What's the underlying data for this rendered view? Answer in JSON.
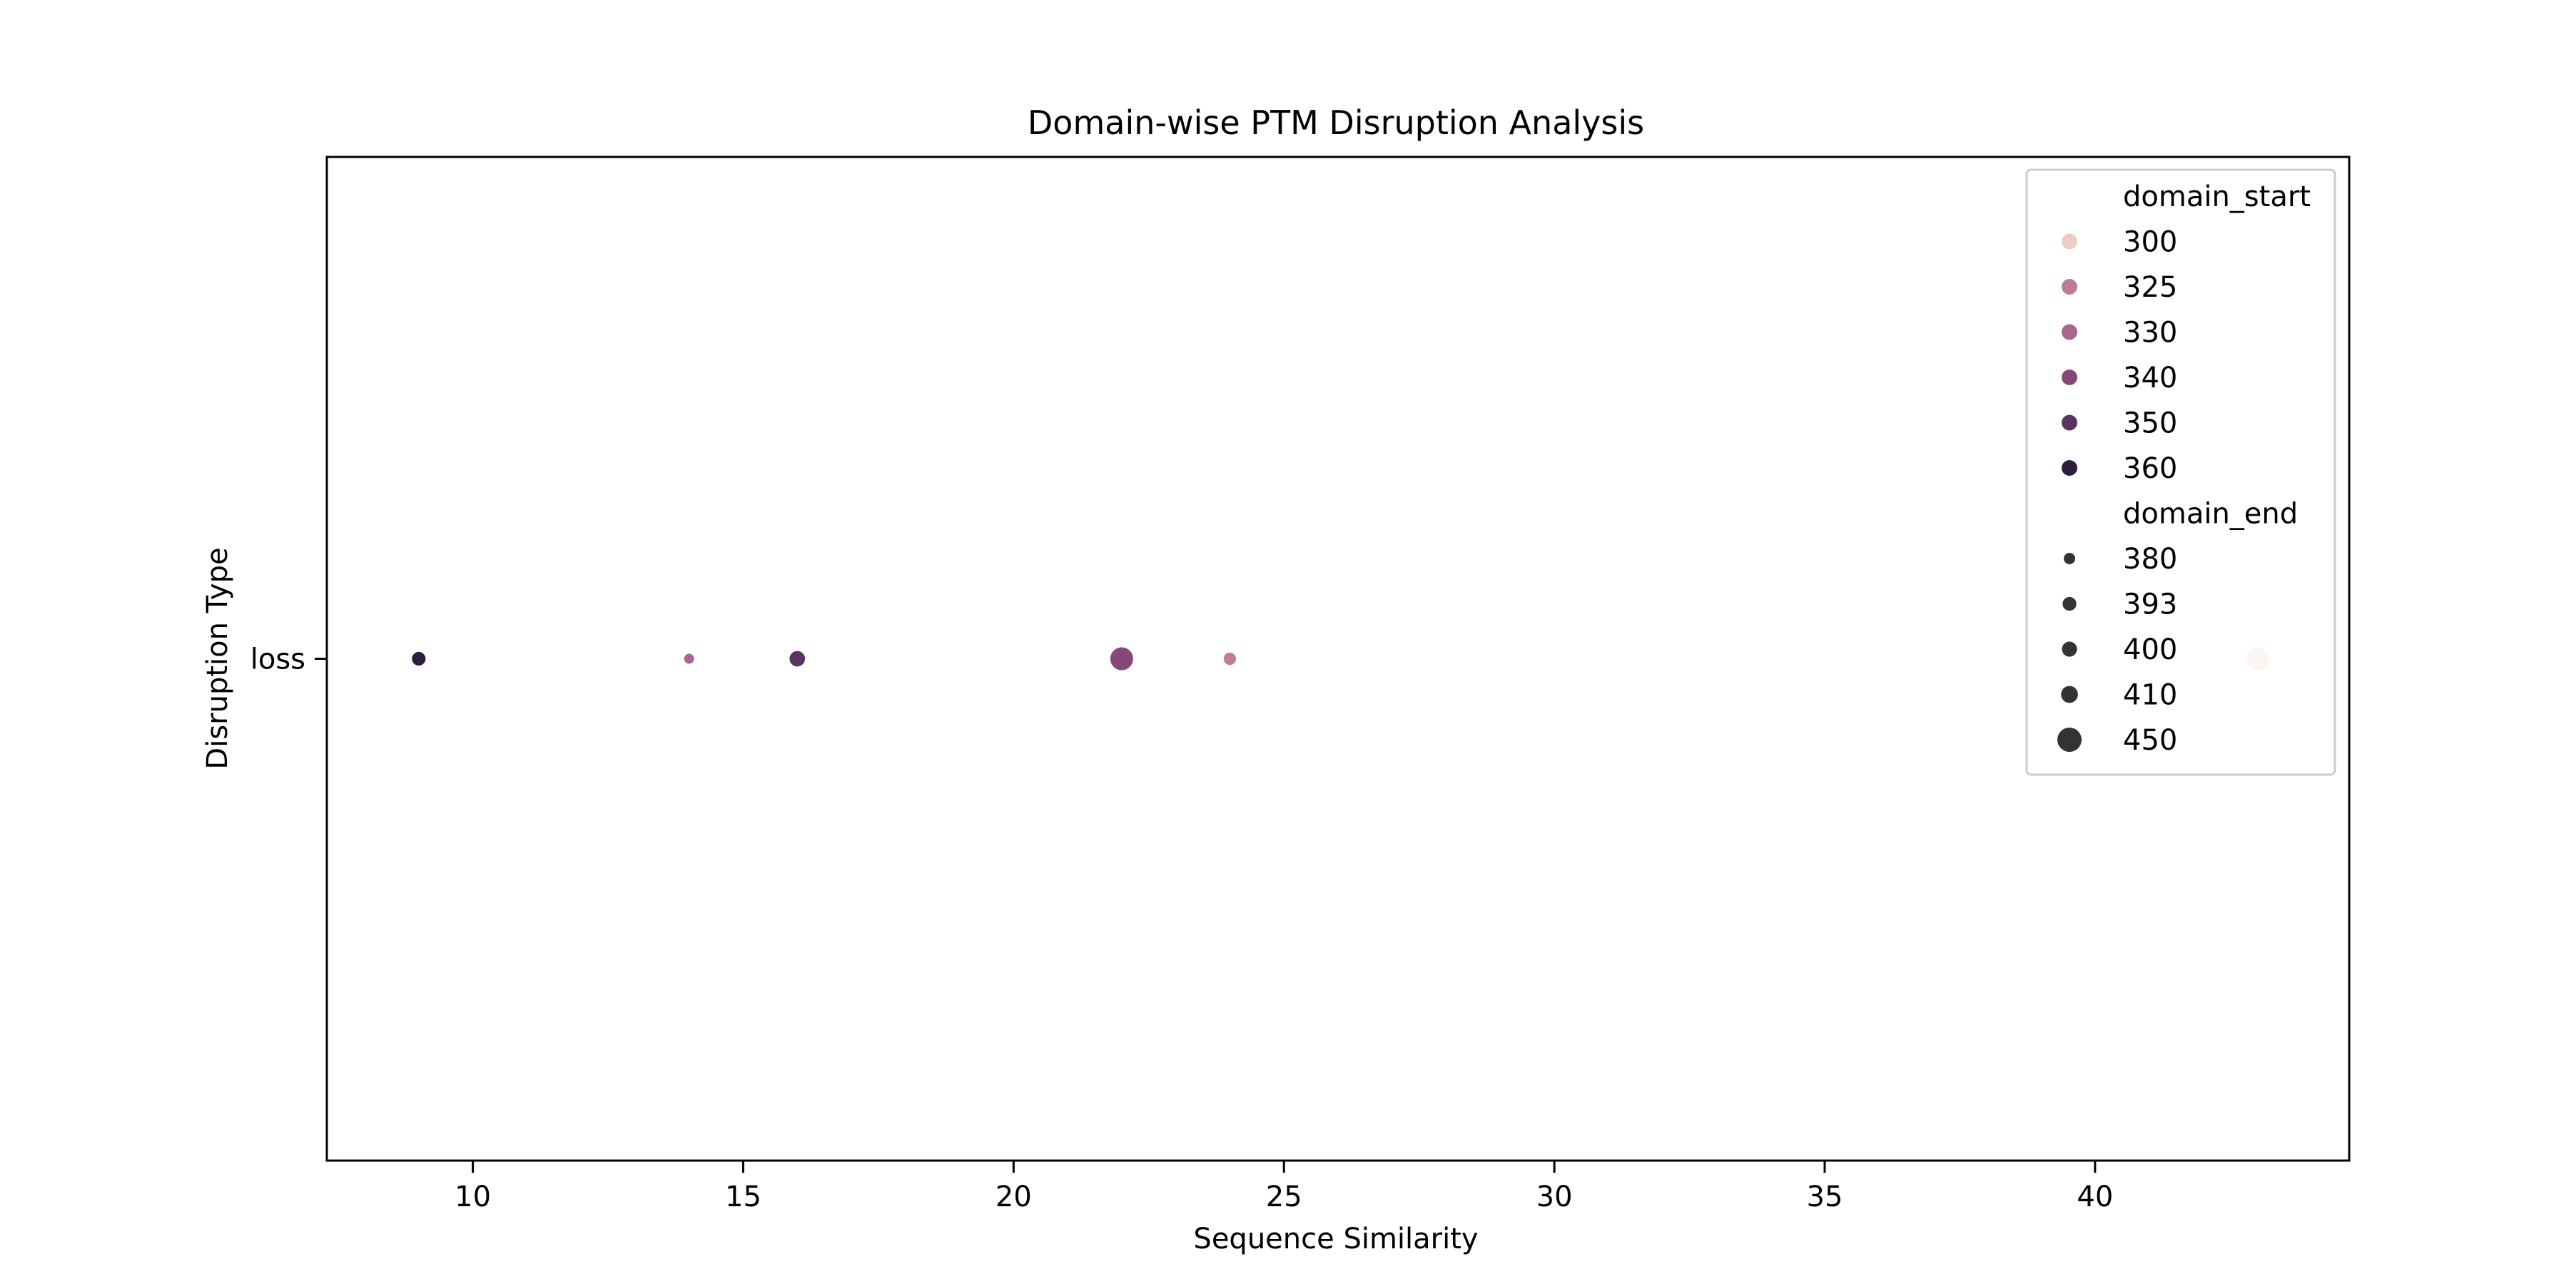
{
  "chart_data": {
    "type": "scatter",
    "title": "Domain-wise PTM Disruption Analysis",
    "xlabel": "Sequence Similarity",
    "ylabel": "Disruption Type",
    "xlim": [
      7.3,
      44.7
    ],
    "xticks": [
      10,
      15,
      20,
      25,
      30,
      35,
      40
    ],
    "y_categories": [
      "loss"
    ],
    "grid": false,
    "legend_position": "top-right",
    "points": [
      {
        "x": 9,
        "y": "loss",
        "domain_start": 360,
        "domain_end": 400
      },
      {
        "x": 14,
        "y": "loss",
        "domain_start": 330,
        "domain_end": 380
      },
      {
        "x": 16,
        "y": "loss",
        "domain_start": 350,
        "domain_end": 410
      },
      {
        "x": 22,
        "y": "loss",
        "domain_start": 340,
        "domain_end": 450
      },
      {
        "x": 24,
        "y": "loss",
        "domain_start": 325,
        "domain_end": 393
      },
      {
        "x": 43,
        "y": "loss",
        "domain_start": 300,
        "domain_end": 450
      }
    ],
    "legend": {
      "hue_title": "domain_start",
      "hue_entries": [
        {
          "label": "300",
          "color": "#ebcdc4"
        },
        {
          "label": "325",
          "color": "#bd7c9a"
        },
        {
          "label": "330",
          "color": "#a8678e"
        },
        {
          "label": "340",
          "color": "#874877"
        },
        {
          "label": "350",
          "color": "#573461"
        },
        {
          "label": "360",
          "color": "#2d1e3e"
        }
      ],
      "size_title": "domain_end",
      "size_entries": [
        {
          "label": "380",
          "value": 380
        },
        {
          "label": "393",
          "value": 393
        },
        {
          "label": "400",
          "value": 400
        },
        {
          "label": "410",
          "value": 410
        },
        {
          "label": "450",
          "value": 450
        }
      ],
      "size_marker_color": "#333333"
    }
  }
}
